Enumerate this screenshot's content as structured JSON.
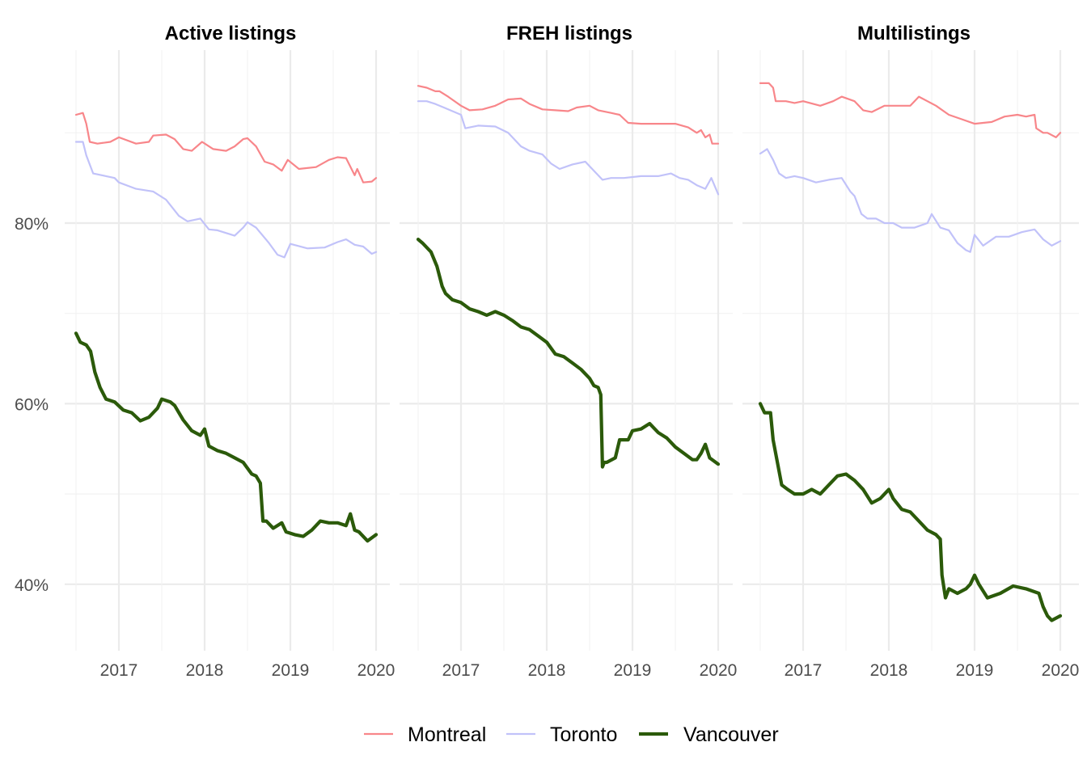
{
  "chart_data": {
    "type": "line",
    "facets": [
      "Active listings",
      "FREH listings",
      "Multilistings"
    ],
    "x_ticks": [
      "2017",
      "2018",
      "2019",
      "2020"
    ],
    "x_tick_values": [
      2017,
      2018,
      2019,
      2020
    ],
    "xlim": [
      2016.5,
      2020.0
    ],
    "y_ticks": [
      "40%",
      "60%",
      "80%"
    ],
    "y_tick_values": [
      0.4,
      0.6,
      0.8
    ],
    "ylim": [
      0.33,
      0.97
    ],
    "grid": true,
    "legend_position": "bottom",
    "series_names": [
      "Montreal",
      "Toronto",
      "Vancouver"
    ],
    "series_colors": {
      "Montreal": "#f8868a",
      "Toronto": "#c1c2f9",
      "Vancouver": "#2b5a0a"
    },
    "panels": [
      {
        "title": "Active listings",
        "series": [
          {
            "name": "Montreal",
            "x": [
              2016.5,
              2016.58,
              2016.62,
              2016.66,
              2016.75,
              2016.9,
              2017.0,
              2017.2,
              2017.35,
              2017.4,
              2017.55,
              2017.65,
              2017.75,
              2017.85,
              2017.97,
              2018.1,
              2018.25,
              2018.35,
              2018.45,
              2018.5,
              2018.6,
              2018.7,
              2018.8,
              2018.9,
              2018.97,
              2019.1,
              2019.3,
              2019.45,
              2019.55,
              2019.65,
              2019.75,
              2019.78,
              2019.85,
              2019.95,
              2020.0
            ],
            "y": [
              0.92,
              0.922,
              0.91,
              0.89,
              0.888,
              0.89,
              0.895,
              0.888,
              0.89,
              0.897,
              0.898,
              0.893,
              0.882,
              0.88,
              0.89,
              0.882,
              0.88,
              0.885,
              0.893,
              0.894,
              0.885,
              0.868,
              0.865,
              0.858,
              0.87,
              0.86,
              0.862,
              0.87,
              0.873,
              0.872,
              0.853,
              0.86,
              0.845,
              0.846,
              0.85
            ]
          },
          {
            "name": "Toronto",
            "x": [
              2016.5,
              2016.58,
              2016.62,
              2016.7,
              2016.85,
              2016.95,
              2017.0,
              2017.2,
              2017.4,
              2017.55,
              2017.7,
              2017.8,
              2017.95,
              2018.05,
              2018.15,
              2018.35,
              2018.45,
              2018.5,
              2018.6,
              2018.75,
              2018.85,
              2018.93,
              2019.0,
              2019.2,
              2019.4,
              2019.55,
              2019.65,
              2019.75,
              2019.85,
              2019.95,
              2020.0
            ],
            "y": [
              0.89,
              0.89,
              0.875,
              0.855,
              0.852,
              0.85,
              0.845,
              0.838,
              0.835,
              0.826,
              0.808,
              0.802,
              0.805,
              0.793,
              0.792,
              0.786,
              0.795,
              0.801,
              0.795,
              0.778,
              0.765,
              0.762,
              0.777,
              0.772,
              0.773,
              0.779,
              0.782,
              0.776,
              0.774,
              0.766,
              0.768
            ]
          },
          {
            "name": "Vancouver",
            "x": [
              2016.5,
              2016.55,
              2016.62,
              2016.67,
              2016.72,
              2016.78,
              2016.85,
              2016.95,
              2017.05,
              2017.15,
              2017.25,
              2017.35,
              2017.45,
              2017.5,
              2017.6,
              2017.65,
              2017.75,
              2017.85,
              2017.95,
              2018.0,
              2018.05,
              2018.15,
              2018.25,
              2018.35,
              2018.45,
              2018.55,
              2018.6,
              2018.65,
              2018.68,
              2018.72,
              2018.8,
              2018.9,
              2018.95,
              2019.05,
              2019.15,
              2019.25,
              2019.35,
              2019.45,
              2019.55,
              2019.65,
              2019.7,
              2019.75,
              2019.8,
              2019.9,
              2020.0
            ],
            "y": [
              0.678,
              0.668,
              0.665,
              0.658,
              0.635,
              0.618,
              0.605,
              0.602,
              0.593,
              0.59,
              0.581,
              0.585,
              0.595,
              0.605,
              0.602,
              0.598,
              0.582,
              0.57,
              0.565,
              0.572,
              0.553,
              0.548,
              0.545,
              0.54,
              0.535,
              0.522,
              0.52,
              0.512,
              0.47,
              0.47,
              0.462,
              0.468,
              0.458,
              0.455,
              0.453,
              0.46,
              0.47,
              0.468,
              0.468,
              0.465,
              0.478,
              0.46,
              0.458,
              0.448,
              0.455
            ]
          }
        ]
      },
      {
        "title": "FREH listings",
        "series": [
          {
            "name": "Montreal",
            "x": [
              2016.5,
              2016.6,
              2016.7,
              2016.75,
              2016.85,
              2017.0,
              2017.1,
              2017.25,
              2017.4,
              2017.55,
              2017.7,
              2017.8,
              2017.95,
              2018.1,
              2018.25,
              2018.35,
              2018.5,
              2018.6,
              2018.75,
              2018.85,
              2018.95,
              2019.1,
              2019.3,
              2019.5,
              2019.65,
              2019.75,
              2019.8,
              2019.85,
              2019.9,
              2019.93,
              2020.0
            ],
            "y": [
              0.952,
              0.95,
              0.946,
              0.946,
              0.94,
              0.93,
              0.925,
              0.926,
              0.93,
              0.937,
              0.938,
              0.932,
              0.926,
              0.925,
              0.924,
              0.928,
              0.93,
              0.925,
              0.922,
              0.92,
              0.911,
              0.91,
              0.91,
              0.91,
              0.906,
              0.9,
              0.903,
              0.895,
              0.898,
              0.888,
              0.888
            ]
          },
          {
            "name": "Toronto",
            "x": [
              2016.5,
              2016.6,
              2016.7,
              2016.8,
              2016.9,
              2017.0,
              2017.05,
              2017.2,
              2017.4,
              2017.55,
              2017.7,
              2017.8,
              2017.95,
              2018.05,
              2018.15,
              2018.3,
              2018.45,
              2018.55,
              2018.65,
              2018.75,
              2018.9,
              2019.1,
              2019.3,
              2019.45,
              2019.55,
              2019.65,
              2019.75,
              2019.85,
              2019.92,
              2020.0
            ],
            "y": [
              0.935,
              0.935,
              0.932,
              0.928,
              0.924,
              0.92,
              0.905,
              0.908,
              0.907,
              0.9,
              0.885,
              0.88,
              0.876,
              0.866,
              0.86,
              0.865,
              0.868,
              0.858,
              0.848,
              0.85,
              0.85,
              0.852,
              0.852,
              0.855,
              0.85,
              0.848,
              0.842,
              0.838,
              0.85,
              0.832
            ]
          },
          {
            "name": "Vancouver",
            "x": [
              2016.5,
              2016.55,
              2016.65,
              2016.72,
              2016.78,
              2016.82,
              2016.9,
              2017.0,
              2017.1,
              2017.2,
              2017.3,
              2017.4,
              2017.5,
              2017.6,
              2017.7,
              2017.8,
              2017.9,
              2018.0,
              2018.1,
              2018.2,
              2018.3,
              2018.4,
              2018.5,
              2018.55,
              2018.6,
              2018.63,
              2018.65,
              2018.67,
              2018.7,
              2018.8,
              2018.85,
              2018.95,
              2019.0,
              2019.1,
              2019.2,
              2019.3,
              2019.4,
              2019.5,
              2019.6,
              2019.7,
              2019.75,
              2019.8,
              2019.85,
              2019.9,
              2020.0
            ],
            "y": [
              0.782,
              0.778,
              0.768,
              0.752,
              0.73,
              0.722,
              0.715,
              0.712,
              0.705,
              0.702,
              0.698,
              0.702,
              0.698,
              0.692,
              0.685,
              0.682,
              0.675,
              0.668,
              0.655,
              0.652,
              0.645,
              0.638,
              0.628,
              0.62,
              0.618,
              0.61,
              0.53,
              0.535,
              0.535,
              0.54,
              0.56,
              0.56,
              0.57,
              0.572,
              0.578,
              0.568,
              0.562,
              0.552,
              0.545,
              0.538,
              0.538,
              0.545,
              0.555,
              0.54,
              0.533
            ]
          }
        ]
      },
      {
        "title": "Multilistings",
        "series": [
          {
            "name": "Montreal",
            "x": [
              2016.5,
              2016.6,
              2016.65,
              2016.68,
              2016.8,
              2016.9,
              2017.0,
              2017.2,
              2017.35,
              2017.45,
              2017.6,
              2017.7,
              2017.8,
              2017.95,
              2018.1,
              2018.25,
              2018.35,
              2018.45,
              2018.55,
              2018.7,
              2018.85,
              2019.0,
              2019.2,
              2019.35,
              2019.5,
              2019.6,
              2019.7,
              2019.72,
              2019.8,
              2019.85,
              2019.95,
              2020.0
            ],
            "y": [
              0.955,
              0.955,
              0.95,
              0.935,
              0.935,
              0.933,
              0.935,
              0.93,
              0.935,
              0.94,
              0.935,
              0.925,
              0.923,
              0.93,
              0.93,
              0.93,
              0.94,
              0.935,
              0.93,
              0.92,
              0.915,
              0.91,
              0.912,
              0.918,
              0.92,
              0.918,
              0.92,
              0.905,
              0.9,
              0.9,
              0.895,
              0.9
            ]
          },
          {
            "name": "Toronto",
            "x": [
              2016.5,
              2016.58,
              2016.65,
              2016.72,
              2016.8,
              2016.9,
              2017.0,
              2017.15,
              2017.3,
              2017.45,
              2017.55,
              2017.6,
              2017.68,
              2017.75,
              2017.85,
              2017.95,
              2018.05,
              2018.15,
              2018.3,
              2018.45,
              2018.5,
              2018.6,
              2018.7,
              2018.8,
              2018.9,
              2018.95,
              2019.0,
              2019.1,
              2019.25,
              2019.4,
              2019.55,
              2019.7,
              2019.8,
              2019.9,
              2020.0
            ],
            "y": [
              0.877,
              0.882,
              0.87,
              0.855,
              0.85,
              0.852,
              0.85,
              0.845,
              0.848,
              0.85,
              0.835,
              0.83,
              0.81,
              0.805,
              0.805,
              0.8,
              0.8,
              0.795,
              0.795,
              0.8,
              0.81,
              0.795,
              0.792,
              0.778,
              0.77,
              0.768,
              0.787,
              0.775,
              0.785,
              0.785,
              0.79,
              0.793,
              0.782,
              0.775,
              0.78
            ]
          },
          {
            "name": "Vancouver",
            "x": [
              2016.5,
              2016.55,
              2016.62,
              2016.65,
              2016.7,
              2016.75,
              2016.82,
              2016.9,
              2017.0,
              2017.1,
              2017.2,
              2017.3,
              2017.4,
              2017.5,
              2017.6,
              2017.7,
              2017.8,
              2017.9,
              2018.0,
              2018.05,
              2018.15,
              2018.25,
              2018.35,
              2018.45,
              2018.55,
              2018.6,
              2018.62,
              2018.66,
              2018.7,
              2018.8,
              2018.9,
              2018.95,
              2019.0,
              2019.05,
              2019.15,
              2019.3,
              2019.45,
              2019.6,
              2019.75,
              2019.8,
              2019.85,
              2019.9,
              2020.0
            ],
            "y": [
              0.6,
              0.59,
              0.59,
              0.56,
              0.535,
              0.51,
              0.505,
              0.5,
              0.5,
              0.505,
              0.5,
              0.51,
              0.52,
              0.522,
              0.515,
              0.505,
              0.49,
              0.495,
              0.505,
              0.495,
              0.483,
              0.48,
              0.47,
              0.46,
              0.455,
              0.45,
              0.41,
              0.385,
              0.395,
              0.39,
              0.395,
              0.4,
              0.41,
              0.4,
              0.385,
              0.39,
              0.398,
              0.395,
              0.39,
              0.375,
              0.365,
              0.36,
              0.365
            ]
          }
        ]
      }
    ]
  }
}
